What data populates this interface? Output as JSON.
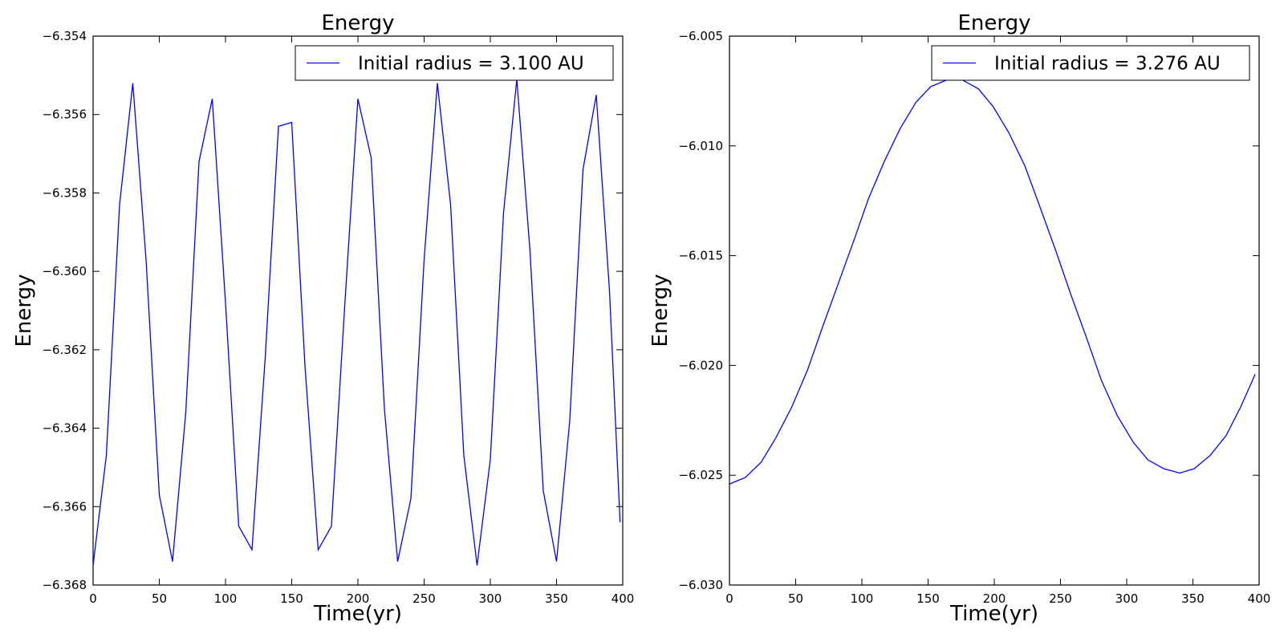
{
  "chart_data": [
    {
      "type": "line",
      "title": "Energy",
      "xlabel": "Time(yr)",
      "ylabel": "Energy",
      "xlim": [
        0,
        400
      ],
      "ylim": [
        -6.368,
        -6.354
      ],
      "xticks": [
        0,
        50,
        100,
        150,
        200,
        250,
        300,
        350,
        400
      ],
      "xtick_labels": [
        "0",
        "50",
        "100",
        "150",
        "200",
        "250",
        "300",
        "350",
        "400"
      ],
      "yticks": [
        -6.368,
        -6.366,
        -6.364,
        -6.362,
        -6.36,
        -6.358,
        -6.356,
        -6.354
      ],
      "ytick_labels": [
        "−6.368",
        "−6.366",
        "−6.364",
        "−6.362",
        "−6.360",
        "−6.358",
        "−6.356",
        "−6.354"
      ],
      "grid": false,
      "legend_position": "top-right",
      "color": "#0000ff",
      "series": [
        {
          "name": "Initial radius = 3.100 AU",
          "x": [
            0,
            10,
            20,
            30,
            40,
            50,
            60,
            70,
            80,
            90,
            100,
            110,
            120,
            130,
            140,
            150,
            160,
            170,
            180,
            190,
            200,
            210,
            220,
            230,
            240,
            250,
            260,
            270,
            280,
            290,
            300,
            310,
            320,
            330,
            340,
            350,
            360,
            370,
            380,
            390,
            398
          ],
          "y": [
            -6.3675,
            -6.3647,
            -6.3583,
            -6.3552,
            -6.3597,
            -6.3657,
            -6.3674,
            -6.3636,
            -6.3572,
            -6.3556,
            -6.3608,
            -6.3665,
            -6.3671,
            -6.3622,
            -6.3563,
            -6.3562,
            -6.3624,
            -6.3671,
            -6.3665,
            -6.3609,
            -6.3556,
            -6.3571,
            -6.3635,
            -6.3674,
            -6.3658,
            -6.3597,
            -6.3552,
            -6.3583,
            -6.3647,
            -6.3675,
            -6.3648,
            -6.3585,
            -6.3551,
            -6.3595,
            -6.3656,
            -6.3674,
            -6.3638,
            -6.3574,
            -6.3555,
            -6.3605,
            -6.3664
          ]
        }
      ]
    },
    {
      "type": "line",
      "title": "Energy",
      "xlabel": "Time(yr)",
      "ylabel": "Energy",
      "xlim": [
        0,
        400
      ],
      "ylim": [
        -6.03,
        -6.005
      ],
      "xticks": [
        0,
        50,
        100,
        150,
        200,
        250,
        300,
        350,
        400
      ],
      "xtick_labels": [
        "0",
        "50",
        "100",
        "150",
        "200",
        "250",
        "300",
        "350",
        "400"
      ],
      "yticks": [
        -6.03,
        -6.025,
        -6.02,
        -6.015,
        -6.01,
        -6.005
      ],
      "ytick_labels": [
        "−6.030",
        "−6.025",
        "−6.020",
        "−6.015",
        "−6.010",
        "−6.005"
      ],
      "grid": false,
      "legend_position": "top-right",
      "color": "#0000ff",
      "series": [
        {
          "name": "Initial radius = 3.276 AU",
          "x": [
            0,
            12,
            24,
            35,
            47,
            59,
            70,
            82,
            94,
            105,
            117,
            129,
            141,
            152,
            164,
            176,
            188,
            199,
            211,
            223,
            234,
            246,
            258,
            270,
            281,
            293,
            305,
            316,
            328,
            340,
            351,
            363,
            375,
            386,
            397
          ],
          "y": [
            -6.0254,
            -6.0251,
            -6.0244,
            -6.0233,
            -6.0219,
            -6.0202,
            -6.0183,
            -6.0163,
            -6.0143,
            -6.0124,
            -6.0107,
            -6.0092,
            -6.008,
            -6.0073,
            -6.007,
            -6.007,
            -6.0074,
            -6.0082,
            -6.0094,
            -6.0109,
            -6.0127,
            -6.0147,
            -6.0168,
            -6.0188,
            -6.0207,
            -6.0223,
            -6.0235,
            -6.0243,
            -6.0247,
            -6.0249,
            -6.0247,
            -6.0241,
            -6.0232,
            -6.0219,
            -6.0204
          ]
        }
      ]
    }
  ]
}
